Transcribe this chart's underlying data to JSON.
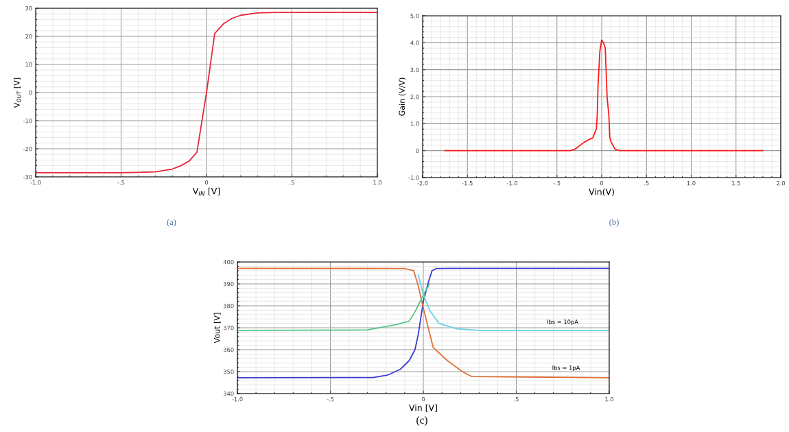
{
  "chart_data": [
    {
      "type": "line",
      "xlabel": "V$_{IN}$ [V]",
      "ylabel": "V$_{OUT}$ [V]",
      "annotations": [
        "(a)"
      ],
      "xlim": [
        -1.0,
        1.0
      ],
      "ylim": [
        -30,
        30
      ],
      "xticks": [
        {
          "value": -1.0,
          "label": "-1.0"
        },
        {
          "value": -0.5,
          "label": "-.5"
        },
        0,
        {
          "value": 0.5,
          "label": ".5"
        },
        {
          "value": 1.0,
          "label": "1.0"
        }
      ],
      "yticks": [
        -30,
        -20,
        -10,
        0,
        10,
        20,
        30
      ],
      "grid": true,
      "series": [
        {
          "color": "#e8283c",
          "x": [
            -1.0,
            -0.5,
            -0.4,
            -0.3,
            -0.2,
            -0.15,
            -0.1,
            -0.056,
            0.0,
            0.048,
            0.1,
            0.15,
            0.2,
            0.3,
            0.4,
            0.5,
            1.0
          ],
          "values": [
            -28.5,
            -28.5,
            -28.4,
            -28.2,
            -27.2,
            -26.0,
            -24.3,
            -21.2,
            0.0,
            21.0,
            24.5,
            26.4,
            27.5,
            28.3,
            28.5,
            28.5,
            28.5
          ]
        }
      ]
    },
    {
      "type": "line",
      "xlabel": "Vin(V)",
      "ylabel": "Gain (V/V)",
      "annotations": [
        "(b)"
      ],
      "xlim": [
        -2.0,
        2.0
      ],
      "ylim": [
        -1.0,
        5.0
      ],
      "xticks": [
        {
          "value": -2.0,
          "label": "-2.0"
        },
        {
          "value": -1.5,
          "label": "-1.5"
        },
        {
          "value": -1.0,
          "label": "-1.0"
        },
        {
          "value": -0.5,
          "label": "-.5"
        },
        0,
        {
          "value": 0.5,
          "label": ".5"
        },
        {
          "value": 1.0,
          "label": "1.0"
        },
        {
          "value": 1.5,
          "label": "1.5"
        },
        {
          "value": 2.0,
          "label": "2.0"
        }
      ],
      "yticks": [
        {
          "value": -1.0,
          "label": "-1.0"
        },
        0,
        {
          "value": 1.0,
          "label": "1.0"
        },
        {
          "value": 2.0,
          "label": "2.0"
        },
        {
          "value": 3.0,
          "label": "3.0"
        },
        {
          "value": 4.0,
          "label": "4.0"
        },
        {
          "value": 5.0,
          "label": "5.0"
        }
      ],
      "grid": true,
      "series": [
        {
          "color": "#ff1a1a",
          "x": [
            -1.75,
            -0.35,
            -0.3,
            -0.2,
            -0.15,
            -0.1,
            -0.06,
            -0.05,
            -0.04,
            -0.02,
            0.0,
            0.02,
            0.04,
            0.06,
            0.08,
            0.09,
            0.1,
            0.15,
            0.2,
            1.8
          ],
          "values": [
            0,
            0,
            0.05,
            0.3,
            0.4,
            0.47,
            0.8,
            1.3,
            2.5,
            3.7,
            4.1,
            4.0,
            3.8,
            2.0,
            1.3,
            0.5,
            0.35,
            0.05,
            0,
            0
          ]
        }
      ]
    },
    {
      "type": "line",
      "xlabel": "Vin [V]",
      "ylabel": "Vout [V]",
      "annotations": [
        "Ibs = 10pA",
        "Ibs = 1pA",
        "(c)"
      ],
      "xlim": [
        -1.0,
        1.0
      ],
      "ylim": [
        340,
        400
      ],
      "xticks": [
        {
          "value": -1.0,
          "label": "-1.0"
        },
        {
          "value": -0.5,
          "label": "-.5"
        },
        0,
        {
          "value": 0.5,
          "label": ".5"
        },
        {
          "value": 1.0,
          "label": "1.0"
        }
      ],
      "yticks": [
        340,
        350,
        360,
        370,
        380,
        390,
        400
      ],
      "grid": true,
      "series": [
        {
          "color": "#3c3cd2",
          "x": [
            -1.0,
            -0.27,
            -0.19,
            -0.125,
            -0.076,
            -0.045,
            -0.027,
            0.0,
            0.028,
            0.047,
            0.07,
            0.157,
            1.0
          ],
          "values": [
            347.2,
            347.3,
            348.5,
            351,
            355,
            360,
            367,
            382,
            391,
            396,
            397,
            397.1,
            397.1
          ]
        },
        {
          "color": "#e0703a",
          "x": [
            -1.0,
            -0.1,
            -0.052,
            -0.03,
            0.0,
            0.053,
            0.13,
            0.21,
            0.26,
            1.0
          ],
          "values": [
            397.1,
            397.0,
            396,
            390,
            379,
            361,
            355,
            350,
            347.8,
            347.2
          ]
        },
        {
          "color": "#55c486",
          "x": [
            -1.0,
            -0.3,
            -0.15,
            -0.076,
            -0.04,
            0.0,
            0.034
          ],
          "values": [
            368.8,
            369.0,
            371.4,
            373,
            378,
            385,
            390
          ]
        },
        {
          "color": "#66d0e2",
          "x": [
            -0.027,
            0.0,
            0.034,
            0.084,
            0.18,
            0.3,
            1.0
          ],
          "values": [
            394,
            385,
            378,
            372,
            369.5,
            368.8,
            368.8
          ]
        }
      ]
    }
  ]
}
